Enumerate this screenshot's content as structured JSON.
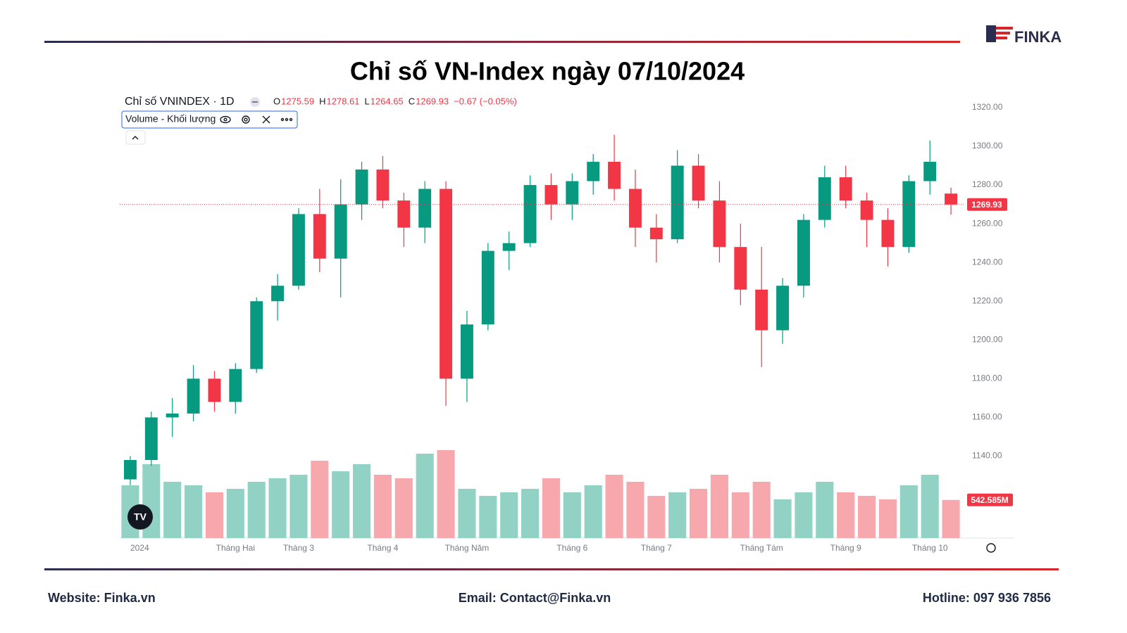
{
  "header": {
    "title": "Chỉ số VN-Index ngày 07/10/2024",
    "logo": "FINKA"
  },
  "footer": {
    "website": "Website: Finka.vn",
    "email": "Email: Contact@Finka.vn",
    "hotline": "Hotline: 097 936 7856"
  },
  "chart_data": {
    "type": "candlestick",
    "title": "Chỉ số VNINDEX · 1D",
    "indicator": "Volume - Khối lượng",
    "ohlc_legend": [
      {
        "label": "O",
        "value": 1275.59
      },
      {
        "label": "H",
        "value": 1278.61
      },
      {
        "label": "L",
        "value": 1264.65
      },
      {
        "label": "C",
        "value": 1269.93
      }
    ],
    "change": "−0.67 (−0.05%)",
    "categories": [
      "2024",
      null,
      null,
      null,
      null,
      "Tháng Hai",
      null,
      null,
      "Tháng 3",
      null,
      null,
      null,
      "Tháng 4",
      null,
      null,
      null,
      "Tháng Năm",
      null,
      null,
      null,
      null,
      "Tháng 6",
      null,
      null,
      null,
      "Tháng 7",
      null,
      null,
      null,
      null,
      "Tháng Tám",
      null,
      null,
      null,
      "Tháng 9",
      null,
      null,
      null,
      "Tháng 10",
      null
    ],
    "open": [
      1128,
      1138,
      1160,
      1162,
      1180,
      1168,
      1185,
      1220,
      1228,
      1265,
      1242,
      1270,
      1288,
      1272,
      1258,
      1278,
      1180,
      1208,
      1246,
      1250,
      1280,
      1270,
      1282,
      1292,
      1278,
      1258,
      1252,
      1290,
      1272,
      1248,
      1226,
      1205,
      1228,
      1262,
      1284,
      1272,
      1262,
      1248,
      1282,
      1275.59
    ],
    "high": [
      1140,
      1163,
      1170,
      1187,
      1184,
      1188,
      1222,
      1234,
      1268,
      1278,
      1283,
      1292,
      1295,
      1276,
      1282,
      1282,
      1215,
      1250,
      1256,
      1285,
      1286,
      1286,
      1296,
      1306,
      1288,
      1265,
      1298,
      1296,
      1282,
      1260,
      1248,
      1232,
      1265,
      1290,
      1290,
      1276,
      1268,
      1285,
      1303,
      1278.61
    ],
    "low": [
      1125,
      1135,
      1150,
      1158,
      1163,
      1162,
      1183,
      1210,
      1226,
      1235,
      1222,
      1262,
      1268,
      1248,
      1250,
      1166,
      1168,
      1205,
      1236,
      1248,
      1262,
      1262,
      1275,
      1272,
      1248,
      1240,
      1250,
      1268,
      1240,
      1218,
      1186,
      1198,
      1222,
      1258,
      1268,
      1248,
      1238,
      1245,
      1275,
      1264.65
    ],
    "close": [
      1138,
      1160,
      1162,
      1180,
      1168,
      1185,
      1220,
      1228,
      1265,
      1242,
      1270,
      1288,
      1272,
      1258,
      1278,
      1180,
      1208,
      1246,
      1250,
      1280,
      1270,
      1282,
      1292,
      1278,
      1258,
      1252,
      1290,
      1272,
      1248,
      1226,
      1205,
      1228,
      1262,
      1284,
      1272,
      1262,
      1248,
      1282,
      1292,
      1269.93
    ],
    "volume": [
      750,
      1050,
      800,
      750,
      650,
      700,
      800,
      850,
      900,
      1100,
      950,
      1050,
      900,
      850,
      1200,
      1250,
      700,
      600,
      650,
      700,
      850,
      650,
      750,
      900,
      800,
      600,
      650,
      700,
      900,
      650,
      800,
      550,
      650,
      800,
      650,
      600,
      550,
      750,
      900,
      542.585
    ],
    "volume_label": "542.585M",
    "last_price": 1269.93,
    "up_color": "#089981",
    "down_color": "#f23645",
    "volume_up_color": "#92d2c4",
    "volume_down_color": "#f7a8ad",
    "ylim": [
      1097.7,
      1324.7
    ],
    "yticks": [
      {
        "value": 1140,
        "label": "1140.00"
      },
      {
        "value": 1160,
        "label": "1160.00"
      },
      {
        "value": 1180,
        "label": "1180.00"
      },
      {
        "value": 1200,
        "label": "1200.00"
      },
      {
        "value": 1220,
        "label": "1220.00"
      },
      {
        "value": 1240,
        "label": "1240.00"
      },
      {
        "value": 1260,
        "label": "1260.00"
      },
      {
        "value": 1280,
        "label": "1280.00"
      },
      {
        "value": 1300,
        "label": "1300.00"
      },
      {
        "value": 1320,
        "label": "1320.00"
      }
    ],
    "vlim": [
      0,
      1600
    ],
    "grid": false
  }
}
